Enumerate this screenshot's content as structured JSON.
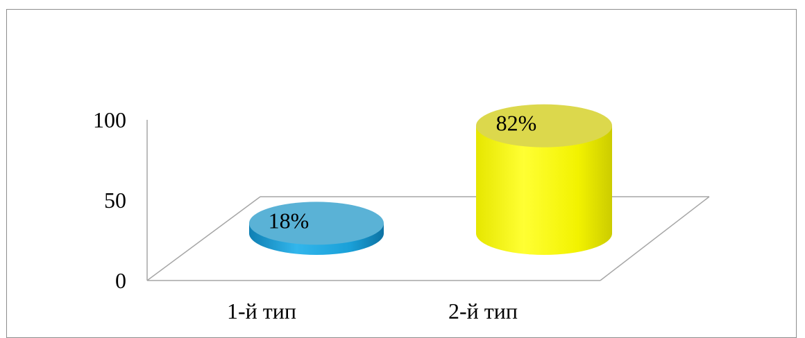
{
  "chart_data": {
    "type": "bar",
    "style": "3d-cylinder",
    "categories": [
      "1-й тип",
      "2-й тип"
    ],
    "values": [
      18,
      82
    ],
    "data_labels": [
      "18%",
      "82%"
    ],
    "ylim": [
      0,
      100
    ],
    "yticks": [
      "0",
      "50",
      "100"
    ],
    "ytick_values": [
      0,
      50,
      100
    ],
    "grid": false,
    "legend": "none",
    "colors": {
      "series": [
        "#1aa0d8",
        "#ffff00"
      ],
      "series_top": [
        "#5ab2d6",
        "#dcd84c"
      ],
      "axis": "#a6a6a6",
      "frame": "#8c8c8c"
    }
  }
}
